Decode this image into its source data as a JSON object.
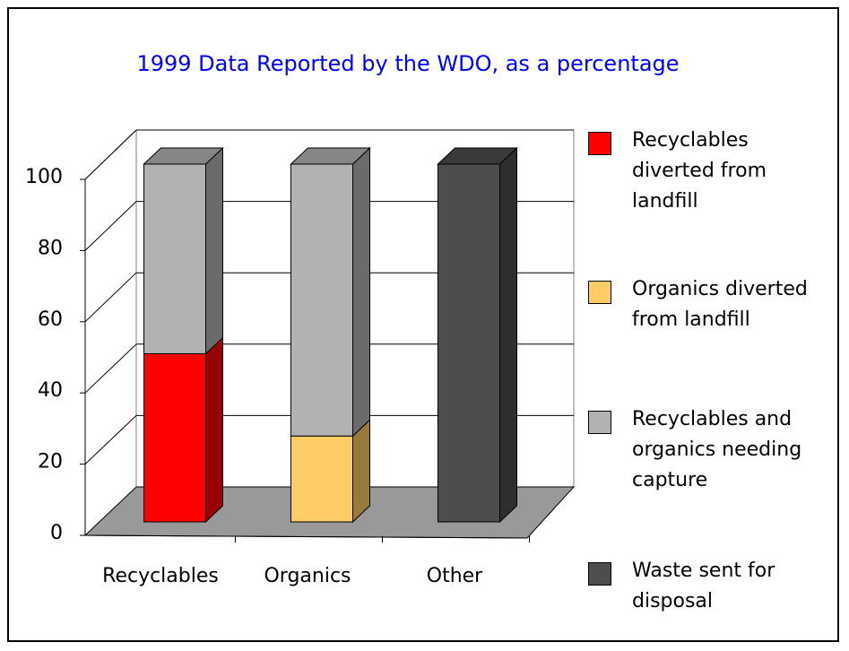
{
  "chart_data": {
    "type": "bar",
    "stacked": true,
    "three_d": true,
    "title": "1999 Data Reported by the WDO, as a percentage",
    "categories": [
      "Recyclables",
      "Organics",
      "Other"
    ],
    "series": [
      {
        "name": "Recyclables diverted from landfill",
        "color": "#ff0000",
        "values": [
          47,
          0,
          0
        ]
      },
      {
        "name": "Organics diverted from landfill",
        "color": "#ffcc66",
        "values": [
          0,
          24,
          0
        ]
      },
      {
        "name": "Recyclables and organics needing capture",
        "color": "#b2b2b2",
        "values": [
          53,
          76,
          0
        ]
      },
      {
        "name": "Waste sent for disposal",
        "color": "#4d4d4d",
        "values": [
          0,
          0,
          100
        ]
      }
    ],
    "ylim": [
      0,
      100
    ],
    "yticks": [
      0,
      20,
      40,
      60,
      80,
      100
    ],
    "grid": true,
    "legend": "right"
  }
}
